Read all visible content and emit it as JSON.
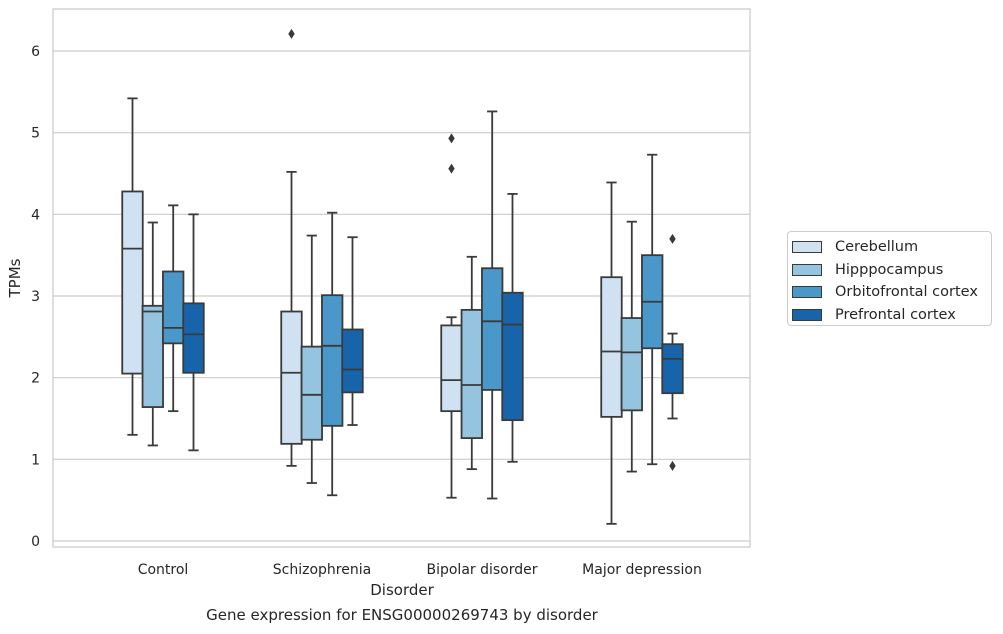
{
  "chart_data": {
    "type": "boxplot",
    "title": "Gene expression for ENSG00000269743 by disorder",
    "xlabel": "Disorder",
    "ylabel": "TPMs",
    "ylim": [
      -0.08,
      6.52
    ],
    "yticks": [
      0,
      1,
      2,
      3,
      4,
      5,
      6
    ],
    "grid": true,
    "legend_position": "right, outside plot",
    "categories": [
      "Control",
      "Schizophrenia",
      "Bipolar disorder",
      "Major depression"
    ],
    "series": [
      {
        "name": "Cerebellum",
        "color": "#d0e1f2",
        "boxes": [
          {
            "whislo": 1.3,
            "q1": 2.05,
            "med": 3.58,
            "q3": 4.28,
            "whishi": 5.42,
            "fliers": []
          },
          {
            "whislo": 0.92,
            "q1": 1.19,
            "med": 2.06,
            "q3": 2.81,
            "whishi": 4.52,
            "fliers": [
              6.21
            ]
          },
          {
            "whislo": 0.53,
            "q1": 1.59,
            "med": 1.97,
            "q3": 2.64,
            "whishi": 2.74,
            "fliers": [
              4.56,
              4.93
            ]
          },
          {
            "whislo": 0.21,
            "q1": 1.52,
            "med": 2.32,
            "q3": 3.23,
            "whishi": 4.39,
            "fliers": []
          }
        ]
      },
      {
        "name": "Hipppocampus",
        "color": "#94c4df",
        "boxes": [
          {
            "whislo": 1.17,
            "q1": 1.64,
            "med": 2.81,
            "q3": 2.88,
            "whishi": 3.9,
            "fliers": []
          },
          {
            "whislo": 0.71,
            "q1": 1.24,
            "med": 1.79,
            "q3": 2.38,
            "whishi": 3.74,
            "fliers": []
          },
          {
            "whislo": 0.88,
            "q1": 1.26,
            "med": 1.91,
            "q3": 2.83,
            "whishi": 3.48,
            "fliers": []
          },
          {
            "whislo": 0.85,
            "q1": 1.6,
            "med": 2.31,
            "q3": 2.73,
            "whishi": 3.91,
            "fliers": []
          }
        ]
      },
      {
        "name": "Orbitofrontal cortex",
        "color": "#4a98c9",
        "boxes": [
          {
            "whislo": 1.59,
            "q1": 2.42,
            "med": 2.61,
            "q3": 3.3,
            "whishi": 4.11,
            "fliers": []
          },
          {
            "whislo": 0.56,
            "q1": 1.41,
            "med": 2.39,
            "q3": 3.01,
            "whishi": 4.02,
            "fliers": []
          },
          {
            "whislo": 0.52,
            "q1": 1.85,
            "med": 2.69,
            "q3": 3.34,
            "whishi": 5.26,
            "fliers": []
          },
          {
            "whislo": 0.94,
            "q1": 2.36,
            "med": 2.93,
            "q3": 3.5,
            "whishi": 4.73,
            "fliers": []
          }
        ]
      },
      {
        "name": "Prefrontal cortex",
        "color": "#1764ab",
        "boxes": [
          {
            "whislo": 1.11,
            "q1": 2.06,
            "med": 2.53,
            "q3": 2.91,
            "whishi": 4.0,
            "fliers": []
          },
          {
            "whislo": 1.42,
            "q1": 1.82,
            "med": 2.1,
            "q3": 2.59,
            "whishi": 3.72,
            "fliers": []
          },
          {
            "whislo": 0.97,
            "q1": 1.48,
            "med": 2.65,
            "q3": 3.04,
            "whishi": 4.25,
            "fliers": []
          },
          {
            "whislo": 1.5,
            "q1": 1.81,
            "med": 2.23,
            "q3": 2.41,
            "whishi": 2.54,
            "fliers": [
              0.92,
              3.7
            ]
          }
        ]
      }
    ]
  }
}
